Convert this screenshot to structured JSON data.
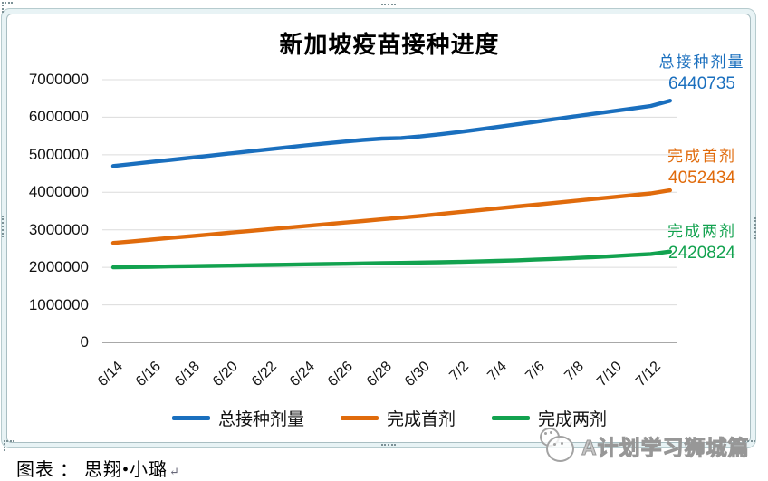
{
  "chart_data": {
    "type": "line",
    "title": "新加坡疫苗接种进度",
    "xlabel": "",
    "ylabel": "",
    "ylim": [
      0,
      7000000
    ],
    "grid": "horizontal",
    "legend_position": "bottom",
    "y_ticks": [
      "7000000",
      "6000000",
      "5000000",
      "4000000",
      "3000000",
      "2000000",
      "1000000",
      "0"
    ],
    "x": [
      "6/14",
      "6/15",
      "6/16",
      "6/17",
      "6/18",
      "6/19",
      "6/20",
      "6/21",
      "6/22",
      "6/23",
      "6/24",
      "6/25",
      "6/26",
      "6/27",
      "6/28",
      "6/29",
      "6/30",
      "7/1",
      "7/2",
      "7/3",
      "7/4",
      "7/5",
      "7/6",
      "7/7",
      "7/8",
      "7/9",
      "7/10",
      "7/11",
      "7/12",
      "7/13"
    ],
    "x_tick_labels": [
      "6/14",
      "6/16",
      "6/18",
      "6/20",
      "6/22",
      "6/24",
      "6/26",
      "6/28",
      "6/30",
      "7/2",
      "7/4",
      "7/6",
      "7/8",
      "7/10",
      "7/12"
    ],
    "series": [
      {
        "name": "总接种剂量",
        "color": "#1A6FBE",
        "end_label": "6440735",
        "values": [
          4700000,
          4755000,
          4810000,
          4865000,
          4920000,
          4975000,
          5030000,
          5085000,
          5140000,
          5195000,
          5250000,
          5300000,
          5350000,
          5395000,
          5430000,
          5445000,
          5490000,
          5545000,
          5605000,
          5670000,
          5740000,
          5810000,
          5880000,
          5950000,
          6020000,
          6090000,
          6160000,
          6230000,
          6300000,
          6440735
        ]
      },
      {
        "name": "完成首剂",
        "color": "#E06B0C",
        "end_label": "4052434",
        "values": [
          2650000,
          2695000,
          2740000,
          2785000,
          2830000,
          2875000,
          2920000,
          2965000,
          3010000,
          3055000,
          3100000,
          3145000,
          3190000,
          3235000,
          3280000,
          3325000,
          3370000,
          3420000,
          3470000,
          3520000,
          3570000,
          3620000,
          3670000,
          3720000,
          3770000,
          3820000,
          3870000,
          3920000,
          3970000,
          4052434
        ]
      },
      {
        "name": "完成两剂",
        "color": "#12A24F",
        "end_label": "2420824",
        "values": [
          2000000,
          2008000,
          2016000,
          2024000,
          2032000,
          2040000,
          2048000,
          2056000,
          2064000,
          2072000,
          2080000,
          2088000,
          2096000,
          2104000,
          2112000,
          2120000,
          2128000,
          2136000,
          2146000,
          2158000,
          2172000,
          2188000,
          2206000,
          2226000,
          2248000,
          2272000,
          2298000,
          2326000,
          2356000,
          2420824
        ]
      }
    ]
  },
  "caption": {
    "text": "图表 ： 思翔•小璐",
    "return_mark": "↵"
  },
  "watermark": {
    "text": "A计划学习狮城篇",
    "logo": "wechat-smiley-icon"
  }
}
